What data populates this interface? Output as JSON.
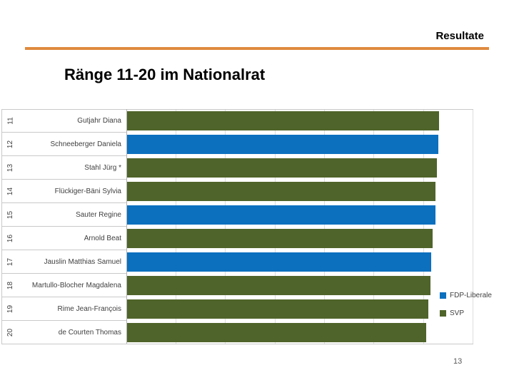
{
  "slide": {
    "header_label": "Resultate",
    "title": "Ränge 11-20 im Nationalrat",
    "page_number": "13",
    "accent_color": "#E08A3E"
  },
  "legend": [
    {
      "label": "FDP-Liberale",
      "color": "#0C70BF"
    },
    {
      "label": "SVP",
      "color": "#4F642A"
    }
  ],
  "chart_data": {
    "type": "bar",
    "orientation": "horizontal",
    "title": "Ränge 11-20 im Nationalrat",
    "value_axis_note": "no numeric axis labels visible; bar lengths estimated as percent of plot width",
    "grid": "vertical major gridlines, unlabeled",
    "legend_position": "right",
    "legend_entries": [
      "FDP-Liberale",
      "SVP"
    ],
    "rows": [
      {
        "rank": "11",
        "name": "Gutjahr Diana",
        "party": "SVP",
        "length_pct": 83.4
      },
      {
        "rank": "12",
        "name": "Schneeberger Daniela",
        "party": "FDP-Liberale",
        "length_pct": 83.2
      },
      {
        "rank": "13",
        "name": "Stahl Jürg *",
        "party": "SVP",
        "length_pct": 82.8
      },
      {
        "rank": "14",
        "name": "Flückiger-Bäni Sylvia",
        "party": "SVP",
        "length_pct": 82.4
      },
      {
        "rank": "15",
        "name": "Sauter Regine",
        "party": "FDP-Liberale",
        "length_pct": 82.4
      },
      {
        "rank": "16",
        "name": "Arnold Beat",
        "party": "SVP",
        "length_pct": 81.7
      },
      {
        "rank": "17",
        "name": "Jauslin Matthias Samuel",
        "party": "FDP-Liberale",
        "length_pct": 81.3
      },
      {
        "rank": "18",
        "name": "Martullo-Blocher Magdalena",
        "party": "SVP",
        "length_pct": 81.1
      },
      {
        "rank": "19",
        "name": "Rime Jean-François",
        "party": "SVP",
        "length_pct": 80.5
      },
      {
        "rank": "20",
        "name": "de Courten Thomas",
        "party": "SVP",
        "length_pct": 80.0
      }
    ]
  }
}
